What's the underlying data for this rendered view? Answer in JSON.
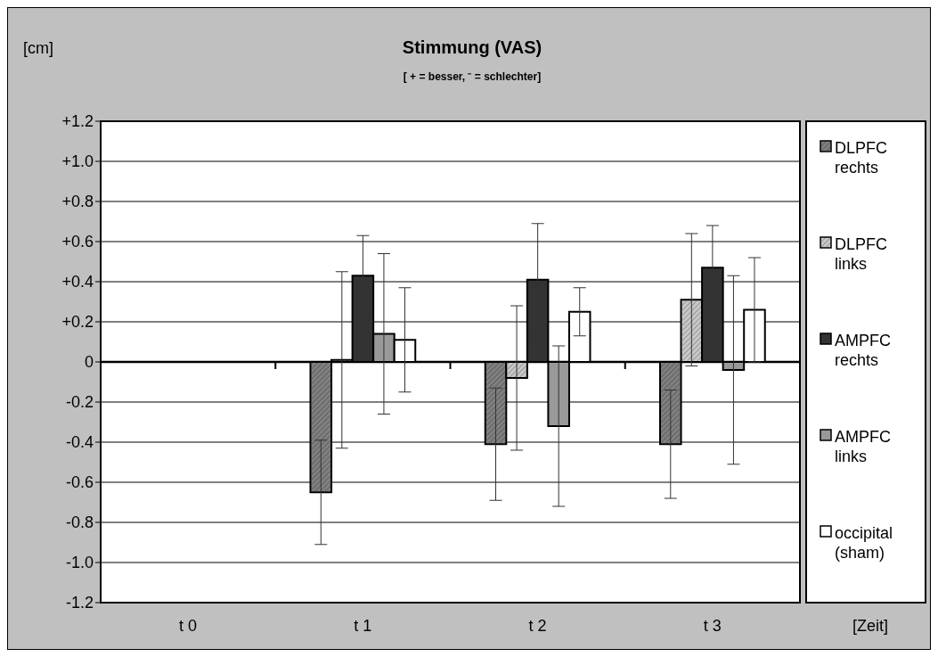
{
  "chart_data": {
    "type": "bar",
    "title": "Stimmung (VAS)",
    "subtitle": "[ + = besser, ⁻ = schlechter]",
    "ylabel": "[cm]",
    "xlabel": "[Zeit]",
    "categories": [
      "t 0",
      "t 1",
      "t 2",
      "t 3"
    ],
    "series": [
      {
        "name": "DLPFC rechts",
        "color": "#808080",
        "values": [
          null,
          -0.65,
          -0.41,
          -0.41
        ],
        "errors": [
          null,
          0.26,
          0.28,
          0.27
        ]
      },
      {
        "name": "DLPFC links",
        "color": "#c8c8c8",
        "values": [
          null,
          0.01,
          -0.08,
          0.31
        ],
        "errors": [
          null,
          0.44,
          0.36,
          0.33
        ]
      },
      {
        "name": "AMPFC rechts",
        "color": "#333333",
        "values": [
          null,
          0.43,
          0.41,
          0.47
        ],
        "errors": [
          null,
          0.2,
          0.28,
          0.21
        ]
      },
      {
        "name": "AMPFC links",
        "color": "#999999",
        "values": [
          null,
          0.14,
          -0.32,
          -0.04
        ],
        "errors": [
          null,
          0.4,
          0.4,
          0.47
        ]
      },
      {
        "name": "occipital (sham)",
        "color": "#ffffff",
        "values": [
          null,
          0.11,
          0.25,
          0.26
        ],
        "errors": [
          null,
          0.26,
          0.12,
          0.26
        ]
      }
    ],
    "ylim": [
      -1.2,
      1.2
    ],
    "yticks": [
      {
        "value": -1.2,
        "label": "-1.2"
      },
      {
        "value": -1,
        "label": "-1.0"
      },
      {
        "value": -0.8,
        "label": "-0.8"
      },
      {
        "value": -0.6,
        "label": "-0.6"
      },
      {
        "value": -0.4,
        "label": "-0.4"
      },
      {
        "value": -0.2,
        "label": "-0.2"
      },
      0,
      {
        "value": 0.2,
        "label": "+0.2"
      },
      {
        "value": 0.4,
        "label": "+0.4"
      },
      {
        "value": 0.6,
        "label": "+0.6"
      },
      {
        "value": 0.8,
        "label": "+0.8"
      },
      {
        "value": 1,
        "label": "+1.0"
      },
      {
        "value": 1.2,
        "label": "+1.2"
      }
    ],
    "grid": "y",
    "legend": "right"
  }
}
